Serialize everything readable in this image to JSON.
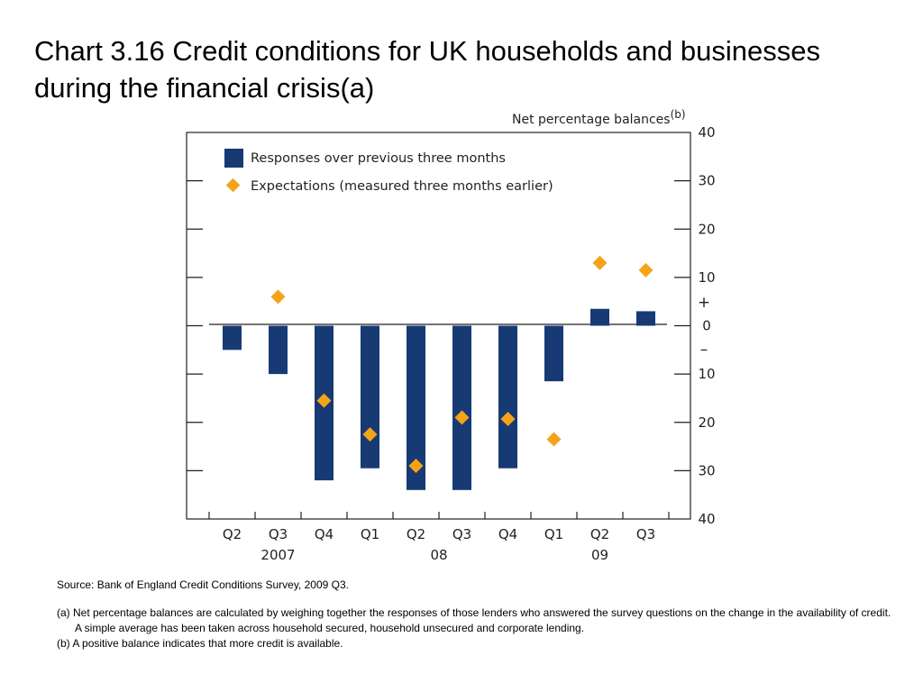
{
  "title": "Chart 3.16  Credit conditions for UK households and businesses during the financial crisis(a)",
  "chart_data": {
    "type": "bar",
    "units_label": "Net percentage balances",
    "units_label_sup": "(b)",
    "categories": [
      "Q2",
      "Q3",
      "Q4",
      "Q1",
      "Q2",
      "Q3",
      "Q4",
      "Q1",
      "Q2",
      "Q3"
    ],
    "year_labels": [
      {
        "label": "2007",
        "category_index": 1
      },
      {
        "label": "08",
        "category_index": 4.5
      },
      {
        "label": "09",
        "category_index": 8
      }
    ],
    "series": [
      {
        "name": "Responses over previous three months",
        "kind": "bar",
        "color": "#173a74",
        "values": [
          -5,
          -10,
          -32,
          -29.5,
          -34,
          -34,
          -29.5,
          -11.5,
          3.5,
          3
        ]
      },
      {
        "name": "Expectations (measured three months earlier)",
        "kind": "marker",
        "color": "#f5a318",
        "values": [
          null,
          6,
          -15.5,
          -22.5,
          -29,
          -19,
          -19.3,
          -23.5,
          13,
          11.5
        ]
      }
    ],
    "ylim": [
      -40,
      40
    ],
    "ytick_values": [
      40,
      30,
      20,
      10,
      0,
      -10,
      -20,
      -30,
      -40
    ],
    "ytick_labels": [
      "40",
      "30",
      "20",
      "10",
      "0",
      "10",
      "20",
      "30",
      "40"
    ],
    "sign_labels": {
      "plus": "+",
      "minus": "–"
    },
    "grid": false,
    "legend_position": "top-left"
  },
  "footnotes": {
    "source": "Source:  Bank of England Credit Conditions Survey, 2009 Q3.",
    "a": "(a) Net percentage balances are calculated by weighing together the responses of those lenders who answered the survey questions on the change in the availability of credit.  A simple average has been taken across household secured, household unsecured and corporate lending.",
    "b": "(b) A positive balance indicates that more credit is available."
  }
}
